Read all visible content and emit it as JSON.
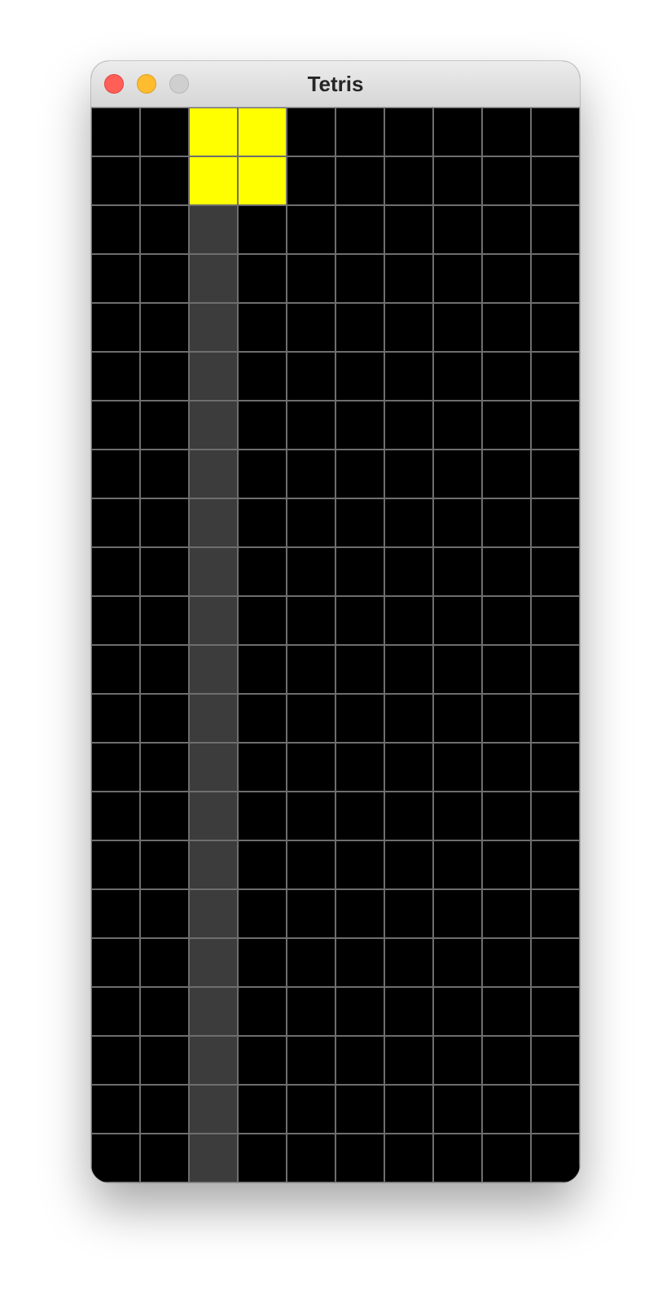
{
  "window": {
    "title": "Tetris"
  },
  "board": {
    "columns": 10,
    "rows": 22,
    "background_color": "#000000",
    "grid_line_color": "#6e6e6e",
    "active_piece": {
      "type": "O",
      "color": "#ffff00",
      "cells": [
        [
          2,
          0
        ],
        [
          3,
          0
        ],
        [
          2,
          1
        ],
        [
          3,
          1
        ]
      ]
    },
    "ghost_column": {
      "column": 2,
      "from_row": 2,
      "to_row": 21,
      "color": "#3c3c3c"
    }
  }
}
